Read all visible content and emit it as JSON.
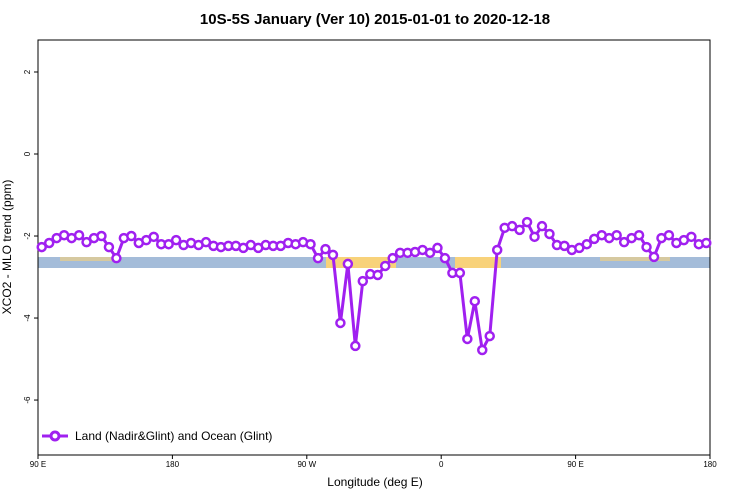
{
  "chart_data": {
    "type": "line",
    "title": "10S-5S January (Ver 10)   2015-01-01 to 2020-12-18",
    "x_label": "Longitude (deg E)",
    "y_label": "XCO2 - MLO trend (ppm)",
    "xlim": [
      90,
      540
    ],
    "xticks": [
      {
        "value": 90,
        "label": "90 E"
      },
      {
        "value": 180,
        "label": "180"
      },
      {
        "value": 270,
        "label": "90 W"
      },
      {
        "value": 360,
        "label": "0"
      },
      {
        "value": 450,
        "label": "90 E"
      },
      {
        "value": 540,
        "label": "180"
      }
    ],
    "ylim": [
      -7.34,
      2.78
    ],
    "yticks": [
      -6,
      -4,
      -2,
      0,
      2
    ],
    "legend_position": "bottom-left",
    "x": [
      92.5,
      97.5,
      102.5,
      107.5,
      112.5,
      117.5,
      122.5,
      127.5,
      132.5,
      137.5,
      142.5,
      147.5,
      152.5,
      157.5,
      162.5,
      167.5,
      172.5,
      177.5,
      182.5,
      187.5,
      192.5,
      197.5,
      202.5,
      207.5,
      212.5,
      217.5,
      222.5,
      227.5,
      232.5,
      237.5,
      242.5,
      247.5,
      252.5,
      257.5,
      262.5,
      267.5,
      272.5,
      277.5,
      282.5,
      287.5,
      292.5,
      297.5,
      302.5,
      307.5,
      312.5,
      317.5,
      322.5,
      327.5,
      332.5,
      337.5,
      342.5,
      347.5,
      352.5,
      357.5,
      362.5,
      367.5,
      372.5,
      377.5,
      382.5,
      387.5,
      392.5,
      397.5,
      402.5,
      407.5,
      412.5,
      417.5,
      422.5,
      427.5,
      432.5,
      437.5,
      442.5,
      447.5,
      452.5,
      457.5,
      462.5,
      467.5,
      472.5,
      477.5,
      482.5,
      487.5,
      492.5,
      497.5,
      502.5,
      507.5,
      512.5,
      517.5,
      522.5,
      527.5,
      532.5,
      537.5
    ],
    "series": [
      {
        "name": "Land (Nadir&Glint) and Ocean (Glint)",
        "color": "#a020f0",
        "values": [
          -2.27,
          -2.17,
          -2.05,
          -1.98,
          -2.05,
          -1.98,
          -2.15,
          -2.05,
          -2.0,
          -2.27,
          -2.54,
          -2.05,
          -2.0,
          -2.17,
          -2.1,
          -2.02,
          -2.2,
          -2.2,
          -2.1,
          -2.22,
          -2.17,
          -2.22,
          -2.15,
          -2.24,
          -2.27,
          -2.24,
          -2.24,
          -2.29,
          -2.22,
          -2.29,
          -2.22,
          -2.24,
          -2.24,
          -2.17,
          -2.2,
          -2.15,
          -2.2,
          -2.54,
          -2.32,
          -2.46,
          -4.12,
          -2.68,
          -4.68,
          -3.1,
          -2.93,
          -2.95,
          -2.73,
          -2.54,
          -2.41,
          -2.41,
          -2.39,
          -2.34,
          -2.41,
          -2.29,
          -2.54,
          -2.9,
          -2.9,
          -4.51,
          -3.59,
          -4.78,
          -4.44,
          -2.34,
          -1.8,
          -1.76,
          -1.85,
          -1.66,
          -2.02,
          -1.76,
          -1.95,
          -2.22,
          -2.24,
          -2.34,
          -2.29,
          -2.2,
          -2.07,
          -1.98,
          -2.05,
          -1.98,
          -2.15,
          -2.05,
          -1.98,
          -2.27,
          -2.51,
          -2.05,
          -1.98,
          -2.17,
          -2.1,
          -2.02,
          -2.2,
          -2.17
        ]
      }
    ]
  }
}
